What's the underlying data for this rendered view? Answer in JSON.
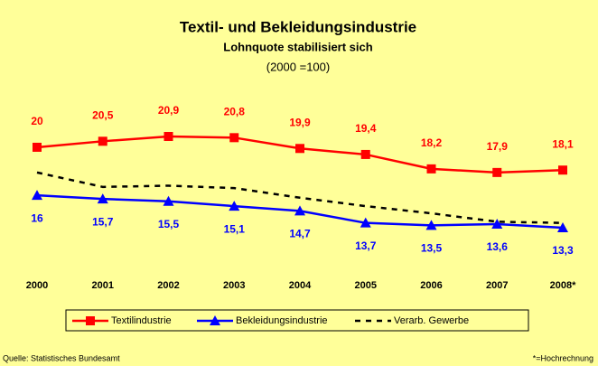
{
  "chart_data": {
    "type": "line",
    "title": "Textil- und Bekleidungsindustrie",
    "subtitle": "Lohnquote stabilisiert sich",
    "note": "(2000 =100)",
    "source": "Quelle: Statistisches Bundesamt",
    "footnote": "*=Hochrechnung",
    "categories": [
      "2000",
      "2001",
      "2002",
      "2003",
      "2004",
      "2005",
      "2006",
      "2007",
      "2008*"
    ],
    "series": [
      {
        "name": "Textilindustrie",
        "color": "#ff0000",
        "marker": "square",
        "label_position": "above",
        "values": [
          20,
          20.5,
          20.9,
          20.8,
          19.9,
          19.4,
          18.2,
          17.9,
          18.1
        ],
        "value_labels": [
          "20",
          "20,5",
          "20,9",
          "20,8",
          "19,9",
          "19,4",
          "18,2",
          "17,9",
          "18,1"
        ]
      },
      {
        "name": "Bekleidungsindustrie",
        "color": "#0000ff",
        "marker": "triangle",
        "label_position": "below",
        "values": [
          16,
          15.7,
          15.5,
          15.1,
          14.7,
          13.7,
          13.5,
          13.6,
          13.3
        ],
        "value_labels": [
          "16",
          "15,7",
          "15,5",
          "15,1",
          "14,7",
          "13,7",
          "13,5",
          "13,6",
          "13,3"
        ]
      },
      {
        "name": "Verarb. Gewerbe",
        "color": "#000000",
        "dashed": true,
        "values": [
          17.9,
          16.7,
          16.8,
          16.6,
          15.8,
          15.1,
          14.5,
          13.8,
          13.7
        ]
      }
    ]
  }
}
